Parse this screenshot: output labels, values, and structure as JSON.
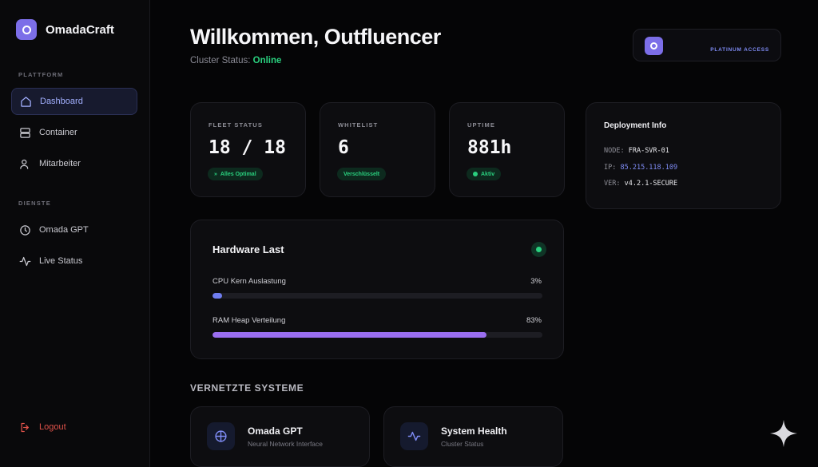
{
  "app": {
    "brand": "OmadaCraft"
  },
  "sidebar": {
    "section_platform": "PLATTFORM",
    "section_services": "DIENSTE",
    "items": [
      {
        "label": "Dashboard",
        "icon": "home-icon",
        "active": true
      },
      {
        "label": "Container",
        "icon": "server-icon",
        "active": false
      },
      {
        "label": "Mitarbeiter",
        "icon": "user-icon",
        "active": false
      }
    ],
    "services": [
      {
        "label": "Omada GPT",
        "icon": "clock-icon"
      },
      {
        "label": "Live Status",
        "icon": "activity-icon"
      }
    ],
    "logout": "Logout"
  },
  "header": {
    "title": "Willkommen, Outfluencer",
    "status_prefix": "Cluster Status:",
    "status_value": "Online",
    "access_badge": "PLATINUM ACCESS"
  },
  "stats": [
    {
      "label": "FLEET STATUS",
      "value": "18 / 18",
      "badge": "Alles Optimal"
    },
    {
      "label": "WHITELIST",
      "value": "6",
      "badge": "Verschlüsselt"
    },
    {
      "label": "UPTIME",
      "value": "881h",
      "badge": "Aktiv"
    }
  ],
  "deployment": {
    "title": "Deployment Info",
    "node_key": "NODE:",
    "node_value": "FRA-SVR-01",
    "ip_key": "IP:",
    "ip_value": "85.215.118.109",
    "ver_key": "VER:",
    "ver_value": "v4.2.1-SECURE"
  },
  "hardware": {
    "title": "Hardware Last",
    "cpu_label": "CPU Kern Auslastung",
    "cpu_pct": "3%",
    "cpu_value": 0.03,
    "ram_label": "RAM Heap Verteilung",
    "ram_pct": "83%",
    "ram_value": 0.83
  },
  "systems": {
    "heading": "VERNETZTE SYSTEME",
    "items": [
      {
        "name": "Omada GPT",
        "sub": "Neural Network Interface",
        "icon": "globe-icon"
      },
      {
        "name": "System Health",
        "sub": "Cluster Status",
        "icon": "pulse-icon"
      }
    ]
  },
  "colors": {
    "accent": "#7c6ee8",
    "success": "#2ad17f",
    "danger": "#e0524a",
    "link": "#7f8cf5"
  }
}
